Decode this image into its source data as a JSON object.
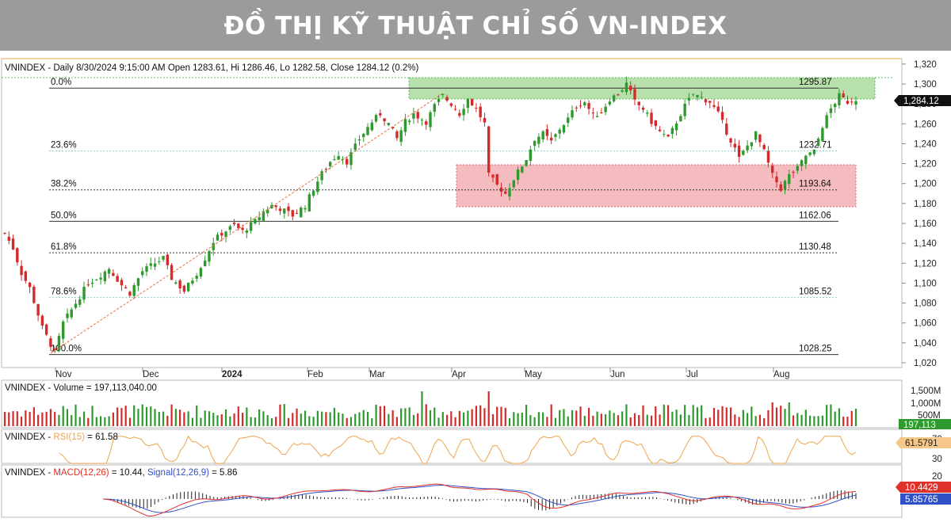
{
  "banner": {
    "title": "ĐỒ THỊ KỸ THUẬT CHỈ SỐ VN-INDEX"
  },
  "colors": {
    "up": "#2e9a2e",
    "down": "#d42a2a",
    "trend": "#e8703a",
    "rsi": "#f0a34a",
    "macd": "#e0302a",
    "signal": "#3050c8",
    "zone_green": "#9fd690",
    "zone_red": "#f2a6ab",
    "teal_label": "#3bb3b3"
  },
  "main": {
    "title": "VNINDEX - Daily 8/30/2024 9:15:00 AM Open 1283.61, Hi 1286.46, Lo 1282.58, Close 1284.12 (0.2%)",
    "price_badge": "1,284.12",
    "fib": [
      {
        "pct": "0.0%",
        "value": "1295.87",
        "level": 1295.87,
        "style": "solid",
        "teal": false
      },
      {
        "pct": "23.6%",
        "value": "1232.71",
        "level": 1232.71,
        "style": "dotted",
        "teal": true
      },
      {
        "pct": "38.2%",
        "value": "1193.64",
        "level": 1193.64,
        "style": "dotted",
        "teal": false
      },
      {
        "pct": "50.0%",
        "value": "1162.06",
        "level": 1162.06,
        "style": "solid",
        "teal": false
      },
      {
        "pct": "61.8%",
        "value": "1130.48",
        "level": 1130.48,
        "style": "dotted",
        "teal": false
      },
      {
        "pct": "78.6%",
        "value": "1085.52",
        "level": 1085.52,
        "style": "dotted",
        "teal": true
      },
      {
        "pct": "100.0%",
        "value": "1028.25",
        "level": 1028.25,
        "style": "solid",
        "teal": false
      }
    ]
  },
  "volume": {
    "title": "VNINDEX - Volume = 197,113,040.00",
    "ticks": [
      "1,500M",
      "1,000M",
      "500M"
    ],
    "badge": "197,113"
  },
  "rsi": {
    "title_prefix": "VNINDEX - ",
    "title_ind": "RSI(15)",
    "title_suffix": " = 61.58",
    "ticks": [
      "70",
      "30"
    ],
    "badge": "61.5791"
  },
  "macd": {
    "title_prefix": "VNINDEX - ",
    "title_macd": "MACD(12,26)",
    "title_mid": " = 10.44, ",
    "title_sig": "Signal(12,26,9)",
    "title_suffix": " = 5.86",
    "ticks": [
      "20"
    ],
    "badge_macd": "10.4429",
    "badge_signal": "5.85765"
  },
  "chart_data": {
    "type": "candlestick",
    "title": "VNINDEX - Daily 8/30/2024 9:15:00 AM Open 1283.61, Hi 1286.46, Lo 1282.58, Close 1284.12 (0.2%)",
    "x_tick_labels": [
      "Nov",
      "Dec",
      "2024",
      "Feb",
      "Mar",
      "Apr",
      "May",
      "Jun",
      "Jul",
      "Aug"
    ],
    "y_tick_labels": [
      "1,320",
      "1,300",
      "1,280",
      "1,260",
      "1,240",
      "1,220",
      "1,200",
      "1,180",
      "1,160",
      "1,140",
      "1,120",
      "1,100",
      "1,080",
      "1,060",
      "1,040",
      "1,020"
    ],
    "ylim": [
      1010,
      1325
    ],
    "close_path": [
      [
        0,
        1150
      ],
      [
        2,
        1135
      ],
      [
        4,
        1110
      ],
      [
        6,
        1095
      ],
      [
        9,
        1055
      ],
      [
        12,
        1030
      ],
      [
        14,
        1060
      ],
      [
        17,
        1080
      ],
      [
        20,
        1100
      ],
      [
        22,
        1105
      ],
      [
        25,
        1115
      ],
      [
        28,
        1098
      ],
      [
        30,
        1090
      ],
      [
        33,
        1112
      ],
      [
        36,
        1120
      ],
      [
        38,
        1125
      ],
      [
        40,
        1105
      ],
      [
        43,
        1092
      ],
      [
        46,
        1110
      ],
      [
        48,
        1125
      ],
      [
        50,
        1142
      ],
      [
        52,
        1150
      ],
      [
        55,
        1158
      ],
      [
        57,
        1152
      ],
      [
        60,
        1162
      ],
      [
        62,
        1172
      ],
      [
        64,
        1178
      ],
      [
        66,
        1175
      ],
      [
        69,
        1168
      ],
      [
        72,
        1178
      ],
      [
        74,
        1195
      ],
      [
        76,
        1210
      ],
      [
        78,
        1222
      ],
      [
        80,
        1230
      ],
      [
        82,
        1222
      ],
      [
        85,
        1245
      ],
      [
        88,
        1262
      ],
      [
        90,
        1270
      ],
      [
        92,
        1260
      ],
      [
        94,
        1245
      ],
      [
        96,
        1262
      ],
      [
        98,
        1270
      ],
      [
        101,
        1262
      ],
      [
        103,
        1278
      ],
      [
        105,
        1288
      ],
      [
        107,
        1280
      ],
      [
        109,
        1270
      ],
      [
        111,
        1285
      ],
      [
        113,
        1275
      ],
      [
        115,
        1260
      ],
      [
        116,
        1208
      ],
      [
        118,
        1198
      ],
      [
        120,
        1190
      ],
      [
        122,
        1205
      ],
      [
        125,
        1225
      ],
      [
        127,
        1245
      ],
      [
        129,
        1250
      ],
      [
        131,
        1242
      ],
      [
        133,
        1255
      ],
      [
        135,
        1265
      ],
      [
        137,
        1278
      ],
      [
        139,
        1282
      ],
      [
        141,
        1268
      ],
      [
        143,
        1272
      ],
      [
        145,
        1285
      ],
      [
        147,
        1290
      ],
      [
        149,
        1300
      ],
      [
        151,
        1282
      ],
      [
        153,
        1275
      ],
      [
        155,
        1262
      ],
      [
        157,
        1252
      ],
      [
        159,
        1245
      ],
      [
        161,
        1262
      ],
      [
        163,
        1278
      ],
      [
        165,
        1290
      ],
      [
        167,
        1286
      ],
      [
        169,
        1282
      ],
      [
        171,
        1270
      ],
      [
        173,
        1252
      ],
      [
        175,
        1235
      ],
      [
        176,
        1225
      ],
      [
        178,
        1238
      ],
      [
        180,
        1250
      ],
      [
        182,
        1232
      ],
      [
        184,
        1208
      ],
      [
        186,
        1195
      ],
      [
        188,
        1208
      ],
      [
        190,
        1215
      ],
      [
        192,
        1228
      ],
      [
        194,
        1232
      ],
      [
        196,
        1258
      ],
      [
        198,
        1275
      ],
      [
        200,
        1288
      ],
      [
        202,
        1282
      ],
      [
        204,
        1285
      ]
    ],
    "volume_axis": [
      "1,500M",
      "1,000M",
      "500M"
    ],
    "rsi_axis": [
      "70",
      "30"
    ],
    "macd_axis": [
      "20"
    ],
    "series": [
      {
        "name": "VNINDEX",
        "type": "candlestick"
      },
      {
        "name": "Volume",
        "value": "197,113,040.00"
      },
      {
        "name": "RSI(15)",
        "value": 61.58
      },
      {
        "name": "MACD(12,26)",
        "value": 10.44
      },
      {
        "name": "Signal(12,26,9)",
        "value": 5.86
      }
    ]
  }
}
